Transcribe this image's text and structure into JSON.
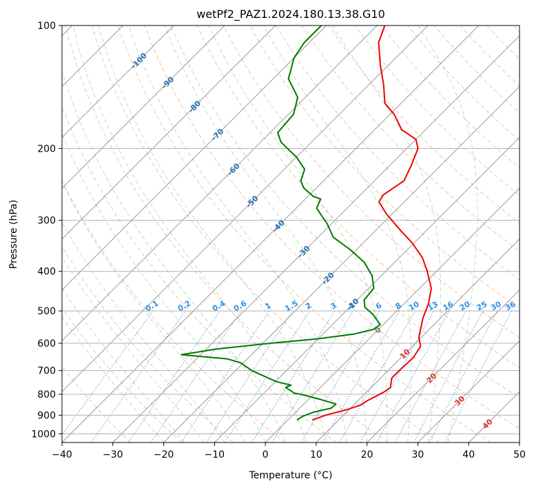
{
  "chart_data": {
    "type": "skew-t",
    "title": "wetPf2_PAZ1.2024.180.13.38.G10",
    "xlabel": "Temperature (°C)",
    "ylabel": "Pressure (hPa)",
    "xlim": [
      -40,
      50
    ],
    "ylim": [
      1050,
      100
    ],
    "y_scale": "log",
    "grid": true,
    "x_ticks": [
      -40,
      -30,
      -20,
      -10,
      0,
      10,
      20,
      30,
      40,
      50
    ],
    "x_tick_labels": [
      "−40",
      "−30",
      "−20",
      "−10",
      "0",
      "10",
      "20",
      "30",
      "40",
      "50"
    ],
    "y_ticks": [
      100,
      200,
      300,
      400,
      500,
      600,
      700,
      800,
      900,
      1000
    ],
    "y_tick_labels": [
      "100",
      "200",
      "300",
      "400",
      "500",
      "600",
      "700",
      "800",
      "900",
      "1000"
    ],
    "series": [
      {
        "color": "#ee0000",
        "points": [
          [
            925,
            4.8
          ],
          [
            900,
            6.5
          ],
          [
            870,
            9.8
          ],
          [
            850,
            11.4
          ],
          [
            830,
            11.8
          ],
          [
            810,
            12.6
          ],
          [
            790,
            13.4
          ],
          [
            770,
            13.8
          ],
          [
            750,
            13.0
          ],
          [
            730,
            12.2
          ],
          [
            700,
            12.2
          ],
          [
            650,
            12.4
          ],
          [
            610,
            11.6
          ],
          [
            580,
            9.5
          ],
          [
            520,
            6.5
          ],
          [
            480,
            4.8
          ],
          [
            440,
            2.3
          ],
          [
            400,
            -1.8
          ],
          [
            370,
            -5.5
          ],
          [
            340,
            -10.5
          ],
          [
            320,
            -14.6
          ],
          [
            300,
            -18.8
          ],
          [
            290,
            -21.0
          ],
          [
            280,
            -23.0
          ],
          [
            270,
            -25.0
          ],
          [
            260,
            -25.5
          ],
          [
            240,
            -24.2
          ],
          [
            220,
            -25.8
          ],
          [
            200,
            -27.8
          ],
          [
            190,
            -30.0
          ],
          [
            180,
            -34.7
          ],
          [
            165,
            -39.2
          ],
          [
            155,
            -43.2
          ],
          [
            140,
            -47.0
          ],
          [
            125,
            -51.6
          ],
          [
            110,
            -56.4
          ],
          [
            100,
            -58.5
          ]
        ]
      },
      {
        "color": "#007700",
        "points": [
          [
            925,
            1.8
          ],
          [
            905,
            2.2
          ],
          [
            885,
            3.5
          ],
          [
            865,
            6.2
          ],
          [
            845,
            6.3
          ],
          [
            825,
            2.6
          ],
          [
            800,
            -2.5
          ],
          [
            795,
            -4.0
          ],
          [
            770,
            -6.8
          ],
          [
            760,
            -6.2
          ],
          [
            745,
            -9.8
          ],
          [
            700,
            -16.8
          ],
          [
            670,
            -20.5
          ],
          [
            655,
            -24.0
          ],
          [
            640,
            -33.8
          ],
          [
            620,
            -28.0
          ],
          [
            600,
            -18.5
          ],
          [
            585,
            -10.0
          ],
          [
            570,
            -4.0
          ],
          [
            555,
            -1.0
          ],
          [
            540,
            -0.6
          ],
          [
            510,
            -4.0
          ],
          [
            490,
            -7.0
          ],
          [
            470,
            -8.6
          ],
          [
            440,
            -9.0
          ],
          [
            410,
            -11.8
          ],
          [
            380,
            -16.0
          ],
          [
            355,
            -21.0
          ],
          [
            330,
            -27.0
          ],
          [
            305,
            -31.0
          ],
          [
            295,
            -33.0
          ],
          [
            280,
            -36.0
          ],
          [
            266,
            -37.0
          ],
          [
            262,
            -39.0
          ],
          [
            250,
            -42.5
          ],
          [
            240,
            -44.5
          ],
          [
            225,
            -46.0
          ],
          [
            210,
            -50.0
          ],
          [
            200,
            -53.5
          ],
          [
            193,
            -56.0
          ],
          [
            183,
            -58.5
          ],
          [
            165,
            -59.0
          ],
          [
            150,
            -61.5
          ],
          [
            135,
            -67.0
          ],
          [
            120,
            -70.0
          ],
          [
            110,
            -71.0
          ],
          [
            100,
            -71.0
          ]
        ]
      }
    ],
    "temperature_labels": [
      "-100",
      "-90",
      "-80",
      "-70",
      "-60",
      "-50",
      "-40",
      "-30",
      "-20",
      "-10",
      "0",
      "10",
      "20",
      "30",
      "40"
    ],
    "mixing_ratio_labels": [
      "0.1",
      "0.2",
      "0.4",
      "0.6",
      "1",
      "1.5",
      "2",
      "3",
      "4",
      "6",
      "8",
      "10",
      "13",
      "16",
      "20",
      "25",
      "30",
      "36"
    ]
  }
}
